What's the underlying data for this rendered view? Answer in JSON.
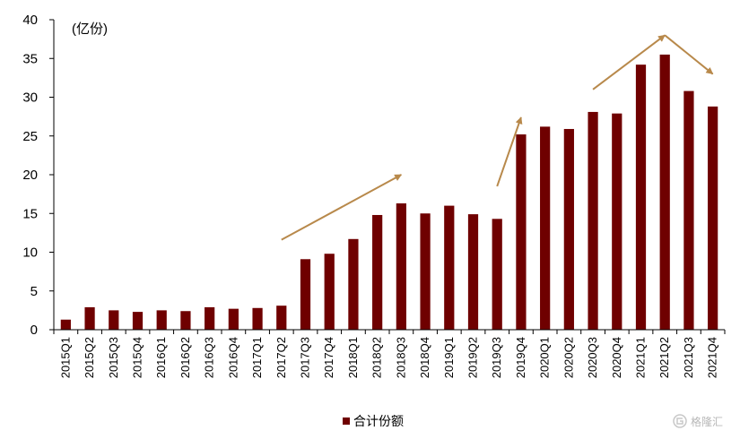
{
  "chart_data": {
    "type": "bar",
    "unit_label": "(亿份)",
    "categories": [
      "2015Q1",
      "2015Q2",
      "2015Q3",
      "2015Q4",
      "2016Q1",
      "2016Q2",
      "2016Q3",
      "2016Q4",
      "2017Q1",
      "2017Q2",
      "2017Q3",
      "2017Q4",
      "2018Q1",
      "2018Q2",
      "2018Q3",
      "2018Q4",
      "2019Q1",
      "2019Q2",
      "2019Q3",
      "2019Q4",
      "2020Q1",
      "2020Q2",
      "2020Q3",
      "2020Q4",
      "2021Q1",
      "2021Q2",
      "2021Q3",
      "2021Q4"
    ],
    "series": [
      {
        "name": "合计份额",
        "color": "#6f0000",
        "values": [
          1.3,
          2.9,
          2.5,
          2.3,
          2.5,
          2.4,
          2.9,
          2.7,
          2.8,
          3.1,
          9.1,
          9.8,
          11.7,
          14.8,
          16.3,
          15.0,
          16.0,
          14.9,
          14.3,
          25.2,
          26.2,
          25.9,
          28.1,
          27.9,
          34.2,
          35.5,
          30.8,
          28.8
        ]
      }
    ],
    "ylim": [
      0,
      40
    ],
    "yticks": [
      0,
      5,
      10,
      15,
      20,
      25,
      30,
      35,
      40
    ],
    "xlabel": "",
    "ylabel": "",
    "grid": false,
    "legend": "bottom-center",
    "annotations": [
      {
        "kind": "arrow",
        "color": "#b8894b",
        "from": {
          "category": "2017Q2",
          "value": 11.6
        },
        "to": {
          "category": "2018Q3",
          "value": 20.0
        }
      },
      {
        "kind": "arrow",
        "color": "#b8894b",
        "from": {
          "category": "2019Q3",
          "value": 18.5
        },
        "to": {
          "category": "2019Q4",
          "value": 27.4
        }
      },
      {
        "kind": "arrow",
        "color": "#b8894b",
        "from": {
          "category": "2020Q3",
          "value": 31.0
        },
        "to": {
          "category": "2021Q2",
          "value": 38.0
        }
      },
      {
        "kind": "arrow",
        "color": "#b8894b",
        "from": {
          "category": "2021Q2",
          "value": 38.0
        },
        "to": {
          "category": "2021Q4",
          "value": 33.0
        }
      }
    ]
  },
  "watermark": {
    "icon": "gelonghui-logo-icon",
    "text": "格隆汇"
  }
}
